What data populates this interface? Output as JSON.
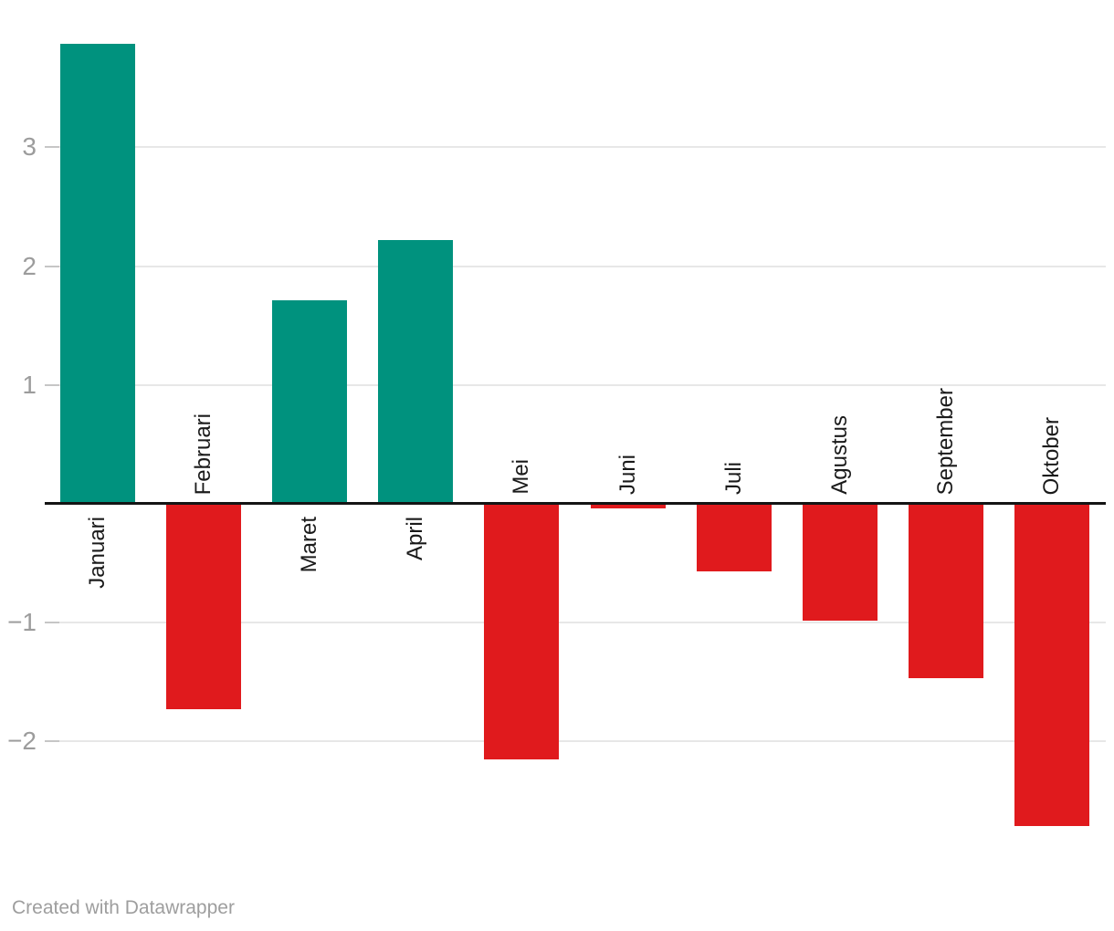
{
  "chart_data": {
    "type": "bar",
    "categories": [
      "Januari",
      "Februari",
      "Maret",
      "April",
      "Mei",
      "Juni",
      "Juli",
      "Agustus",
      "September",
      "Oktober"
    ],
    "values": [
      3.87,
      -1.73,
      1.71,
      2.22,
      -2.15,
      -0.04,
      -0.57,
      -0.98,
      -1.47,
      -2.71
    ],
    "title": "",
    "xlabel": "",
    "ylabel": "",
    "ylim": [
      -2.9,
      4.25
    ],
    "grid": true,
    "legend": "none",
    "yticks": [
      {
        "label": "3",
        "value": 3
      },
      {
        "label": "2",
        "value": 2
      },
      {
        "label": "1",
        "value": 1
      },
      {
        "label": "−1",
        "value": -1
      },
      {
        "label": "−2",
        "value": -2
      }
    ],
    "positive_color": "#00927e",
    "negative_color": "#e01a1d",
    "gridline_color": "#e7e7e7",
    "tick_label_color": "#9c9c9c",
    "category_label_color": "#1a1a1a",
    "zero_line_color": "#141414"
  },
  "footer": {
    "credit": "Created with Datawrapper"
  }
}
